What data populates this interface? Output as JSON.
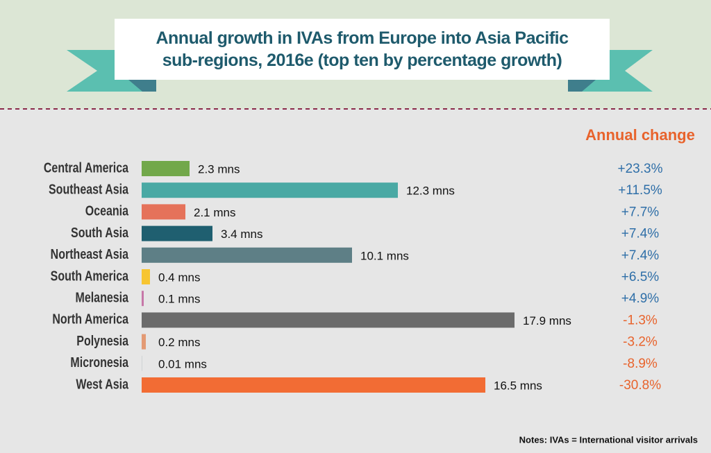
{
  "chart_data": {
    "type": "bar",
    "orientation": "horizontal",
    "title": "Annual growth in IVAs from Europe into Asia Pacific sub-regions, 2016e (top ten by percentage growth)",
    "categories": [
      "Central America",
      "Southeast Asia",
      "Oceania",
      "South Asia",
      "Northeast Asia",
      "South America",
      "Melanesia",
      "North America",
      "Polynesia",
      "Micronesia",
      "West Asia"
    ],
    "values": [
      2.3,
      12.3,
      2.1,
      3.4,
      10.1,
      0.4,
      0.1,
      17.9,
      0.2,
      0.01,
      16.5
    ],
    "value_labels": [
      "2.3 mns",
      "12.3 mns",
      "2.1 mns",
      "3.4 mns",
      "10.1 mns",
      "0.4 mns",
      "0.1 mns",
      "17.9 mns",
      "0.2 mns",
      "0.01 mns",
      "16.5 mns"
    ],
    "colors": [
      "#72a84a",
      "#4aa9a4",
      "#e5725a",
      "#1f5f70",
      "#5e7f86",
      "#f7c531",
      "#c777a8",
      "#6b6b6b",
      "#e39a74",
      "#9aa7ad",
      "#f26c34"
    ],
    "change_header": "Annual change",
    "change": [
      23.3,
      11.5,
      7.7,
      7.4,
      7.4,
      6.5,
      4.9,
      -1.3,
      -3.2,
      -8.9,
      -30.8
    ],
    "change_labels": [
      "+23.3%",
      "+11.5%",
      "+7.7%",
      "+7.4%",
      "+7.4%",
      "+6.5%",
      "+4.9%",
      "-1.3%",
      "-3.2%",
      "-8.9%",
      "-30.8%"
    ],
    "positive_color": "#2f6fa8",
    "negative_color": "#e8632c",
    "note": "Notes: IVAs = International visitor arrivals"
  }
}
